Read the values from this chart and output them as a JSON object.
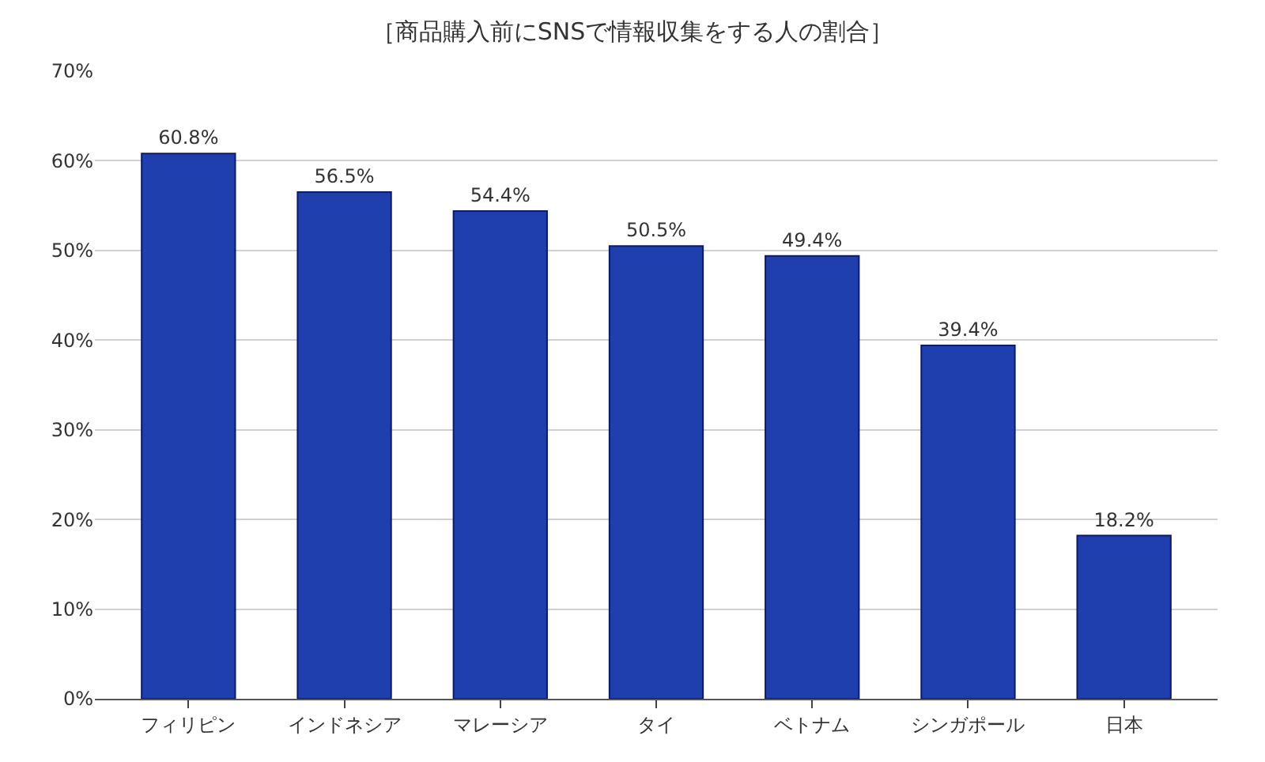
{
  "chart_data": {
    "type": "bar",
    "title": "［商品購入前にSNSで情報収集をする人の割合］",
    "categories": [
      "フィリピン",
      "インドネシア",
      "マレーシア",
      "タイ",
      "ベトナム",
      "シンガポール",
      "日本"
    ],
    "values": [
      60.8,
      56.5,
      54.4,
      50.5,
      49.4,
      39.4,
      18.2
    ],
    "value_labels": [
      "60.8%",
      "56.5%",
      "54.4%",
      "50.5%",
      "49.4%",
      "39.4%",
      "18.2%"
    ],
    "color": "#1f3fae",
    "ylim": [
      0,
      70
    ],
    "yticks": [
      {
        "value": 0,
        "label": "0%"
      },
      {
        "value": 10,
        "label": "10%"
      },
      {
        "value": 20,
        "label": "20%"
      },
      {
        "value": 30,
        "label": "30%"
      },
      {
        "value": 40,
        "label": "40%"
      },
      {
        "value": 50,
        "label": "50%"
      },
      {
        "value": 60,
        "label": "60%"
      },
      {
        "value": 70,
        "label": "70%"
      }
    ],
    "grid": "y",
    "legend": false
  }
}
